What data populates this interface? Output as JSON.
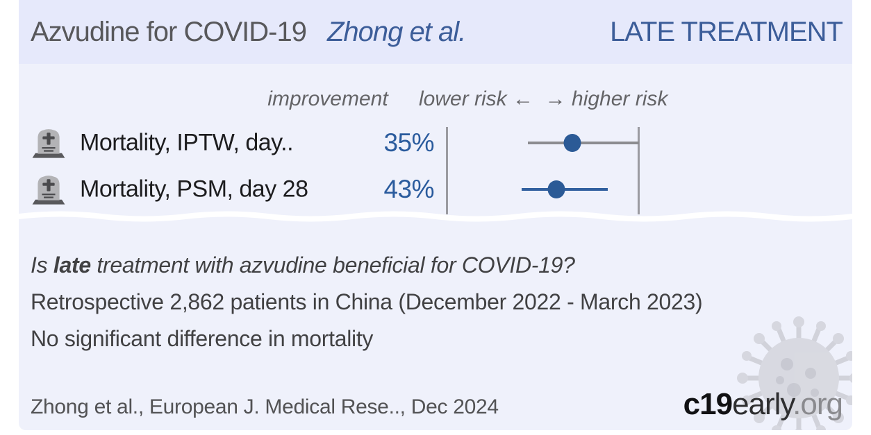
{
  "header": {
    "title": "Azvudine for COVID-19",
    "author": "Zhong et al.",
    "stage": "LATE TREATMENT"
  },
  "plot": {
    "improvement_header": "improvement",
    "risk_scale_header": "lower risk ←  → higher risk"
  },
  "rows": [
    {
      "label": "Mortality, IPTW, day..",
      "improvement": "35%",
      "ci": {
        "start": 0.424,
        "end": 1.0,
        "point": 0.655,
        "line_color": "#8c8c90",
        "dot_color": "#2b5a96"
      }
    },
    {
      "label": "Mortality, PSM, day 28",
      "improvement": "43%",
      "ci": {
        "start": 0.392,
        "end": 0.838,
        "point": 0.572,
        "line_color": "#31609f",
        "dot_color": "#2b5a96"
      }
    }
  ],
  "summary": {
    "question_prefix": "Is ",
    "question_bold": "late",
    "question_suffix": " treatment with azvudine beneficial for COVID-19?",
    "study": "Retrospective 2,862 patients in China (December 2022 - March 2023)",
    "result": "No significant difference in mortality"
  },
  "footer": {
    "citation": "Zhong et al., European J. Medical Rese.., Dec 2024",
    "logo_bold": "c19",
    "logo_mid": "early",
    "logo_suffix": ".org"
  },
  "colors": {
    "accent_blue": "#2b5a96",
    "header_bg": "#e6e9fb",
    "body_bg": "#eff1fb",
    "ci_gray": "#8c8c90"
  },
  "chart_data": {
    "type": "scatter",
    "subtype": "forest_plot",
    "title": "Azvudine for COVID-19 — Zhong et al. — LATE TREATMENT",
    "categories": [
      "Mortality, IPTW, day..",
      "Mortality, PSM, day 28"
    ],
    "series": [
      {
        "name": "improvement",
        "values": [
          35,
          43
        ],
        "unit": "%"
      }
    ],
    "x_axis": {
      "left_label": "lower risk",
      "right_label": "higher risk",
      "null_line_at_right_of_points": true
    },
    "notes_on_screen": "No significant difference in mortality"
  }
}
